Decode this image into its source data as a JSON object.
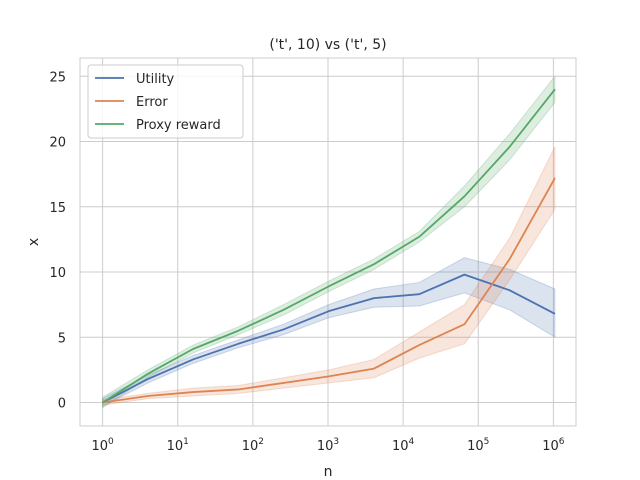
{
  "chart_data": {
    "type": "line",
    "title": "('t', 10) vs ('t', 5)",
    "xlabel": "n",
    "ylabel": "x",
    "xscale": "log",
    "xlim": [
      0.5,
      2000000
    ],
    "ylim": [
      -1.8,
      26.4
    ],
    "grid": true,
    "legend_position": "upper-left",
    "xticks": [
      {
        "value": 1,
        "base": "10",
        "exp": "0"
      },
      {
        "value": 10,
        "base": "10",
        "exp": "1"
      },
      {
        "value": 100,
        "base": "10",
        "exp": "2"
      },
      {
        "value": 1000,
        "base": "10",
        "exp": "3"
      },
      {
        "value": 10000,
        "base": "10",
        "exp": "4"
      },
      {
        "value": 100000,
        "base": "10",
        "exp": "5"
      },
      {
        "value": 1000000,
        "base": "10",
        "exp": "6"
      }
    ],
    "yticks": [
      {
        "value": 0,
        "label": "0"
      },
      {
        "value": 5,
        "label": "5"
      },
      {
        "value": 10,
        "label": "10"
      },
      {
        "value": 15,
        "label": "15"
      },
      {
        "value": 20,
        "label": "20"
      },
      {
        "value": 25,
        "label": "25"
      }
    ],
    "x": [
      1,
      4,
      16,
      64,
      256,
      1024,
      4096,
      16384,
      65536,
      262144,
      1048576
    ],
    "series": [
      {
        "name": "Utility",
        "color": "#4c72b0",
        "values": [
          0.0,
          1.8,
          3.3,
          4.5,
          5.6,
          7.0,
          8.0,
          8.3,
          9.8,
          8.6,
          6.8
        ],
        "lower": [
          -0.3,
          1.5,
          3.0,
          4.2,
          5.2,
          6.5,
          7.3,
          7.4,
          8.4,
          7.1,
          5.0
        ],
        "upper": [
          0.3,
          2.1,
          3.6,
          4.8,
          6.0,
          7.5,
          8.7,
          9.2,
          11.1,
          10.2,
          8.7
        ]
      },
      {
        "name": "Error",
        "color": "#dd8452",
        "values": [
          0.0,
          0.5,
          0.8,
          1.0,
          1.5,
          2.0,
          2.6,
          4.4,
          6.0,
          11.0,
          17.2
        ],
        "lower": [
          -0.2,
          0.3,
          0.5,
          0.7,
          1.1,
          1.5,
          1.9,
          3.4,
          4.5,
          9.4,
          14.8
        ],
        "upper": [
          0.2,
          0.7,
          1.1,
          1.3,
          1.9,
          2.5,
          3.3,
          5.4,
          7.5,
          12.6,
          19.6
        ]
      },
      {
        "name": "Proxy reward",
        "color": "#55a868",
        "values": [
          0.0,
          2.2,
          4.1,
          5.5,
          7.1,
          8.9,
          10.6,
          12.7,
          15.8,
          19.6,
          24.0
        ],
        "lower": [
          -0.4,
          1.9,
          3.8,
          5.2,
          6.7,
          8.5,
          10.2,
          12.3,
          15.0,
          18.6,
          23.0
        ],
        "upper": [
          0.4,
          2.5,
          4.4,
          5.8,
          7.5,
          9.3,
          11.0,
          13.1,
          16.6,
          20.6,
          25.0
        ]
      }
    ]
  }
}
